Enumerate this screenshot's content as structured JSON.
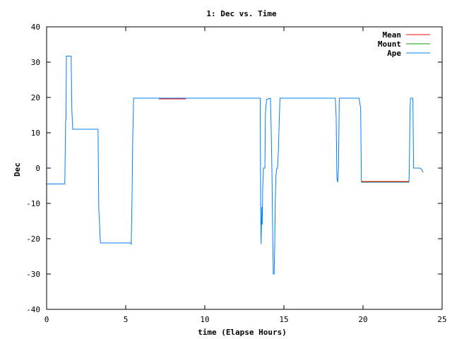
{
  "chart_data": {
    "type": "line",
    "title": "1: Dec vs. Time",
    "xlabel": "time (Elapse Hours)",
    "ylabel": "Dec",
    "xlim": [
      0,
      25
    ],
    "ylim": [
      -40,
      40
    ],
    "xticks": [
      0,
      5,
      10,
      15,
      20,
      25
    ],
    "yticks": [
      40,
      30,
      20,
      10,
      0,
      -10,
      -20,
      -30,
      -40
    ],
    "legend_position": "top-right",
    "grid": false,
    "series": [
      {
        "name": "Mean",
        "color": "#ff0000",
        "segments": [
          [
            [
              7.1,
              19.6
            ],
            [
              8.8,
              19.6
            ]
          ],
          [
            [
              19.9,
              -3.8
            ],
            [
              22.9,
              -3.8
            ]
          ]
        ]
      },
      {
        "name": "Mount",
        "color": "#00a000",
        "segments": [
          [
            [
              19.9,
              -3.9
            ],
            [
              22.9,
              -3.9
            ]
          ]
        ]
      },
      {
        "name": "Ape",
        "color": "#0080ff",
        "segments": [
          [
            [
              0,
              -4.5
            ],
            [
              1.15,
              -4.5
            ],
            [
              1.2,
              13
            ],
            [
              1.23,
              14
            ],
            [
              1.25,
              31.7
            ],
            [
              1.55,
              31.7
            ],
            [
              1.6,
              16
            ],
            [
              1.65,
              11
            ],
            [
              3.25,
              11
            ],
            [
              3.3,
              -12
            ],
            [
              3.35,
              -16
            ],
            [
              3.4,
              -21.2
            ],
            [
              5.3,
              -21.2
            ],
            [
              5.35,
              -21.5
            ],
            [
              5.4,
              -8
            ],
            [
              5.45,
              10
            ],
            [
              5.5,
              19.8
            ],
            [
              13.5,
              19.8
            ],
            [
              13.53,
              -12
            ],
            [
              13.56,
              -21.5
            ],
            [
              13.6,
              -11
            ],
            [
              13.63,
              -16
            ],
            [
              13.66,
              -6
            ],
            [
              13.7,
              0
            ],
            [
              13.8,
              0
            ],
            [
              13.83,
              15
            ],
            [
              13.87,
              18
            ],
            [
              13.92,
              19.5
            ],
            [
              14.15,
              19.8
            ],
            [
              14.2,
              10
            ],
            [
              14.25,
              -3
            ],
            [
              14.3,
              -22
            ],
            [
              14.33,
              -30
            ],
            [
              14.38,
              -30
            ],
            [
              14.42,
              -22
            ],
            [
              14.46,
              -8
            ],
            [
              14.5,
              -2
            ],
            [
              14.55,
              0
            ],
            [
              14.6,
              0
            ],
            [
              14.65,
              5
            ],
            [
              14.75,
              19.8
            ],
            [
              18.25,
              19.8
            ],
            [
              18.3,
              15
            ],
            [
              18.35,
              -3
            ],
            [
              18.4,
              -4
            ],
            [
              18.45,
              0
            ],
            [
              18.5,
              19.8
            ],
            [
              19.75,
              19.8
            ],
            [
              19.85,
              17
            ],
            [
              19.9,
              -4
            ],
            [
              22.9,
              -4
            ],
            [
              22.93,
              0
            ],
            [
              22.97,
              16
            ],
            [
              23.0,
              19.8
            ],
            [
              23.15,
              19.8
            ],
            [
              23.2,
              0
            ],
            [
              23.6,
              0
            ],
            [
              23.7,
              -0.4
            ],
            [
              23.8,
              -1.2
            ]
          ]
        ]
      }
    ]
  }
}
